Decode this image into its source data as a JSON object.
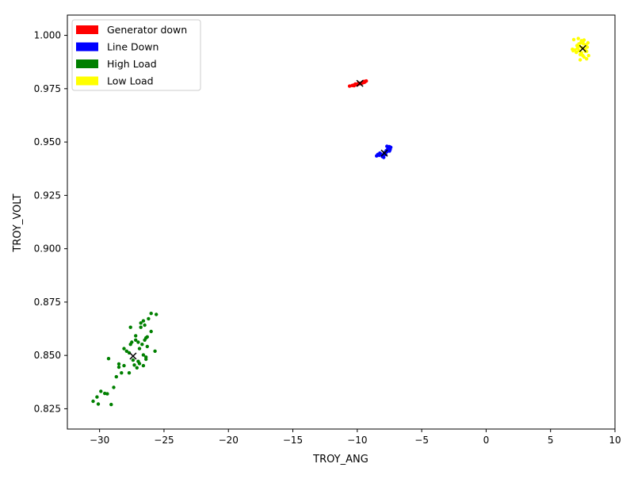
{
  "chart_data": {
    "type": "scatter",
    "title": "",
    "xlabel": "TROY_ANG",
    "ylabel": "TROY_VOLT",
    "xlim": [
      -32.5,
      10
    ],
    "ylim": [
      0.8155,
      1.0095
    ],
    "xticks": [
      -30,
      -25,
      -20,
      -15,
      -10,
      -5,
      0,
      5,
      10
    ],
    "xtick_labels": [
      "−30",
      "−25",
      "−20",
      "−15",
      "−10",
      "−5",
      "0",
      "5",
      "10"
    ],
    "yticks": [
      0.825,
      0.85,
      0.875,
      0.9,
      0.925,
      0.95,
      0.975,
      1.0
    ],
    "ytick_labels": [
      "0.825",
      "0.850",
      "0.875",
      "0.900",
      "0.925",
      "0.950",
      "0.975",
      "1.000"
    ],
    "grid": false,
    "legend_position": "top-left",
    "series": [
      {
        "name": "Generator down",
        "color": "#ff0000",
        "centroid": [
          -9.8,
          0.9775
        ],
        "points": [
          [
            -10.6,
            0.9762
          ],
          [
            -10.4,
            0.9765
          ],
          [
            -10.3,
            0.9766
          ],
          [
            -10.2,
            0.9768
          ],
          [
            -10.1,
            0.9769
          ],
          [
            -10.0,
            0.9771
          ],
          [
            -9.9,
            0.9772
          ],
          [
            -9.8,
            0.9774
          ],
          [
            -9.7,
            0.9776
          ],
          [
            -9.6,
            0.9777
          ],
          [
            -9.5,
            0.9779
          ],
          [
            -9.45,
            0.978
          ],
          [
            -9.4,
            0.9782
          ],
          [
            -9.35,
            0.9785
          ],
          [
            -9.5,
            0.9784
          ],
          [
            -10.0,
            0.9768
          ],
          [
            -9.7,
            0.9773
          ],
          [
            -10.25,
            0.9764
          ],
          [
            -9.55,
            0.9781
          ],
          [
            -9.9,
            0.9776
          ],
          [
            -9.3,
            0.9786
          ],
          [
            -10.15,
            0.9772
          ]
        ]
      },
      {
        "name": "Line Down",
        "color": "#0000ff",
        "centroid": [
          -7.9,
          0.9448
        ],
        "points": [
          [
            -8.5,
            0.9435
          ],
          [
            -8.4,
            0.9442
          ],
          [
            -8.3,
            0.9438
          ],
          [
            -8.2,
            0.9445
          ],
          [
            -8.1,
            0.944
          ],
          [
            -8.0,
            0.9435
          ],
          [
            -7.95,
            0.9428
          ],
          [
            -7.9,
            0.945
          ],
          [
            -7.8,
            0.9442
          ],
          [
            -7.75,
            0.946
          ],
          [
            -7.7,
            0.9455
          ],
          [
            -7.65,
            0.9465
          ],
          [
            -7.6,
            0.9472
          ],
          [
            -7.55,
            0.9468
          ],
          [
            -7.5,
            0.9478
          ],
          [
            -7.45,
            0.9465
          ],
          [
            -7.4,
            0.9475
          ],
          [
            -7.5,
            0.9458
          ],
          [
            -7.6,
            0.9478
          ],
          [
            -7.7,
            0.948
          ],
          [
            -7.85,
            0.9448
          ],
          [
            -8.05,
            0.9432
          ],
          [
            -8.25,
            0.9448
          ]
        ]
      },
      {
        "name": "High Load",
        "color": "#008000",
        "centroid": [
          -27.4,
          0.8497
        ],
        "points": [
          [
            -30.5,
            0.8285
          ],
          [
            -30.2,
            0.8305
          ],
          [
            -30.1,
            0.8272
          ],
          [
            -29.9,
            0.8332
          ],
          [
            -29.6,
            0.8322
          ],
          [
            -29.4,
            0.832
          ],
          [
            -29.1,
            0.827
          ],
          [
            -29.3,
            0.8485
          ],
          [
            -28.9,
            0.835
          ],
          [
            -28.7,
            0.84
          ],
          [
            -28.5,
            0.8445
          ],
          [
            -28.5,
            0.846
          ],
          [
            -28.3,
            0.8418
          ],
          [
            -28.1,
            0.8452
          ],
          [
            -28.1,
            0.8532
          ],
          [
            -27.9,
            0.852
          ],
          [
            -27.7,
            0.8512
          ],
          [
            -27.7,
            0.8418
          ],
          [
            -27.6,
            0.8552
          ],
          [
            -27.6,
            0.8632
          ],
          [
            -27.5,
            0.8562
          ],
          [
            -27.4,
            0.8478
          ],
          [
            -27.3,
            0.8455
          ],
          [
            -27.2,
            0.8572
          ],
          [
            -27.2,
            0.8592
          ],
          [
            -27.1,
            0.8442
          ],
          [
            -27.0,
            0.8562
          ],
          [
            -26.9,
            0.8532
          ],
          [
            -26.9,
            0.8462
          ],
          [
            -26.8,
            0.8652
          ],
          [
            -26.8,
            0.8632
          ],
          [
            -26.7,
            0.8552
          ],
          [
            -26.6,
            0.8502
          ],
          [
            -26.6,
            0.8452
          ],
          [
            -26.6,
            0.8662
          ],
          [
            -26.5,
            0.8572
          ],
          [
            -26.5,
            0.8642
          ],
          [
            -26.4,
            0.8582
          ],
          [
            -26.4,
            0.8482
          ],
          [
            -26.4,
            0.8492
          ],
          [
            -26.3,
            0.8542
          ],
          [
            -26.2,
            0.8672
          ],
          [
            -26.0,
            0.8612
          ],
          [
            -26.0,
            0.8697
          ],
          [
            -25.7,
            0.852
          ],
          [
            -25.6,
            0.8692
          ],
          [
            -27.0,
            0.8472
          ],
          [
            -26.3,
            0.8587
          ]
        ]
      },
      {
        "name": "Low Load",
        "color": "#ffff00",
        "centroid": [
          7.5,
          0.9938
        ],
        "points": [
          [
            6.7,
            0.9935
          ],
          [
            6.75,
            0.9928
          ],
          [
            6.8,
            0.998
          ],
          [
            6.9,
            0.9932
          ],
          [
            7.0,
            0.992
          ],
          [
            7.05,
            0.9952
          ],
          [
            7.1,
            0.994
          ],
          [
            7.15,
            0.9985
          ],
          [
            7.2,
            0.996
          ],
          [
            7.25,
            0.9948
          ],
          [
            7.3,
            0.9885
          ],
          [
            7.3,
            0.991
          ],
          [
            7.35,
            0.9965
          ],
          [
            7.4,
            0.9975
          ],
          [
            7.45,
            0.9942
          ],
          [
            7.5,
            0.9905
          ],
          [
            7.55,
            0.996
          ],
          [
            7.6,
            0.9978
          ],
          [
            7.65,
            0.9935
          ],
          [
            7.7,
            0.9925
          ],
          [
            7.75,
            0.9955
          ],
          [
            7.8,
            0.989
          ],
          [
            7.85,
            0.9945
          ],
          [
            7.9,
            0.9965
          ],
          [
            7.95,
            0.9905
          ],
          [
            7.4,
            0.9918
          ],
          [
            7.6,
            0.9898
          ],
          [
            7.2,
            0.9928
          ],
          [
            7.5,
            0.997
          ],
          [
            7.8,
            0.9925
          ]
        ]
      }
    ]
  }
}
